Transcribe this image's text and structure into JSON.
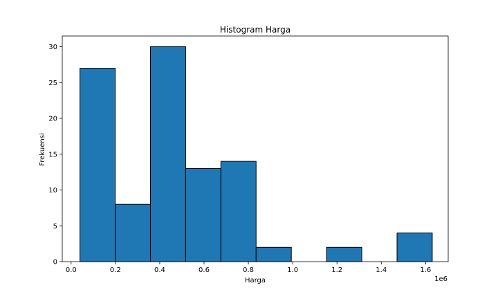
{
  "chart_data": {
    "type": "bar",
    "title": "Histogram Harga",
    "xlabel": "Harga",
    "ylabel": "Frekuensi",
    "x_scale_label": "1e6",
    "xlim": [
      -0.04,
      1.702
    ],
    "ylim": [
      0,
      31.5
    ],
    "grid": false,
    "bar_color": "#1f77b4",
    "edge_color": "#000000",
    "bins": [
      {
        "start": 0.04,
        "end": 0.199,
        "count": 27
      },
      {
        "start": 0.199,
        "end": 0.358,
        "count": 8
      },
      {
        "start": 0.358,
        "end": 0.517,
        "count": 30
      },
      {
        "start": 0.517,
        "end": 0.676,
        "count": 13
      },
      {
        "start": 0.676,
        "end": 0.835,
        "count": 14
      },
      {
        "start": 0.835,
        "end": 0.994,
        "count": 2
      },
      {
        "start": 0.994,
        "end": 1.153,
        "count": 0
      },
      {
        "start": 1.153,
        "end": 1.312,
        "count": 2
      },
      {
        "start": 1.312,
        "end": 1.471,
        "count": 0
      },
      {
        "start": 1.471,
        "end": 1.63,
        "count": 4
      }
    ],
    "x_ticks": [
      {
        "value": 0.0,
        "label": "0.0"
      },
      {
        "value": 0.2,
        "label": "0.2"
      },
      {
        "value": 0.4,
        "label": "0.4"
      },
      {
        "value": 0.6,
        "label": "0.6"
      },
      {
        "value": 0.8,
        "label": "0.8"
      },
      {
        "value": 1.0,
        "label": "1.0"
      },
      {
        "value": 1.2,
        "label": "1.2"
      },
      {
        "value": 1.4,
        "label": "1.4"
      },
      {
        "value": 1.6,
        "label": "1.6"
      }
    ],
    "y_ticks": [
      {
        "value": 0,
        "label": "0"
      },
      {
        "value": 5,
        "label": "5"
      },
      {
        "value": 10,
        "label": "10"
      },
      {
        "value": 15,
        "label": "15"
      },
      {
        "value": 20,
        "label": "20"
      },
      {
        "value": 25,
        "label": "25"
      },
      {
        "value": 30,
        "label": "30"
      }
    ]
  }
}
